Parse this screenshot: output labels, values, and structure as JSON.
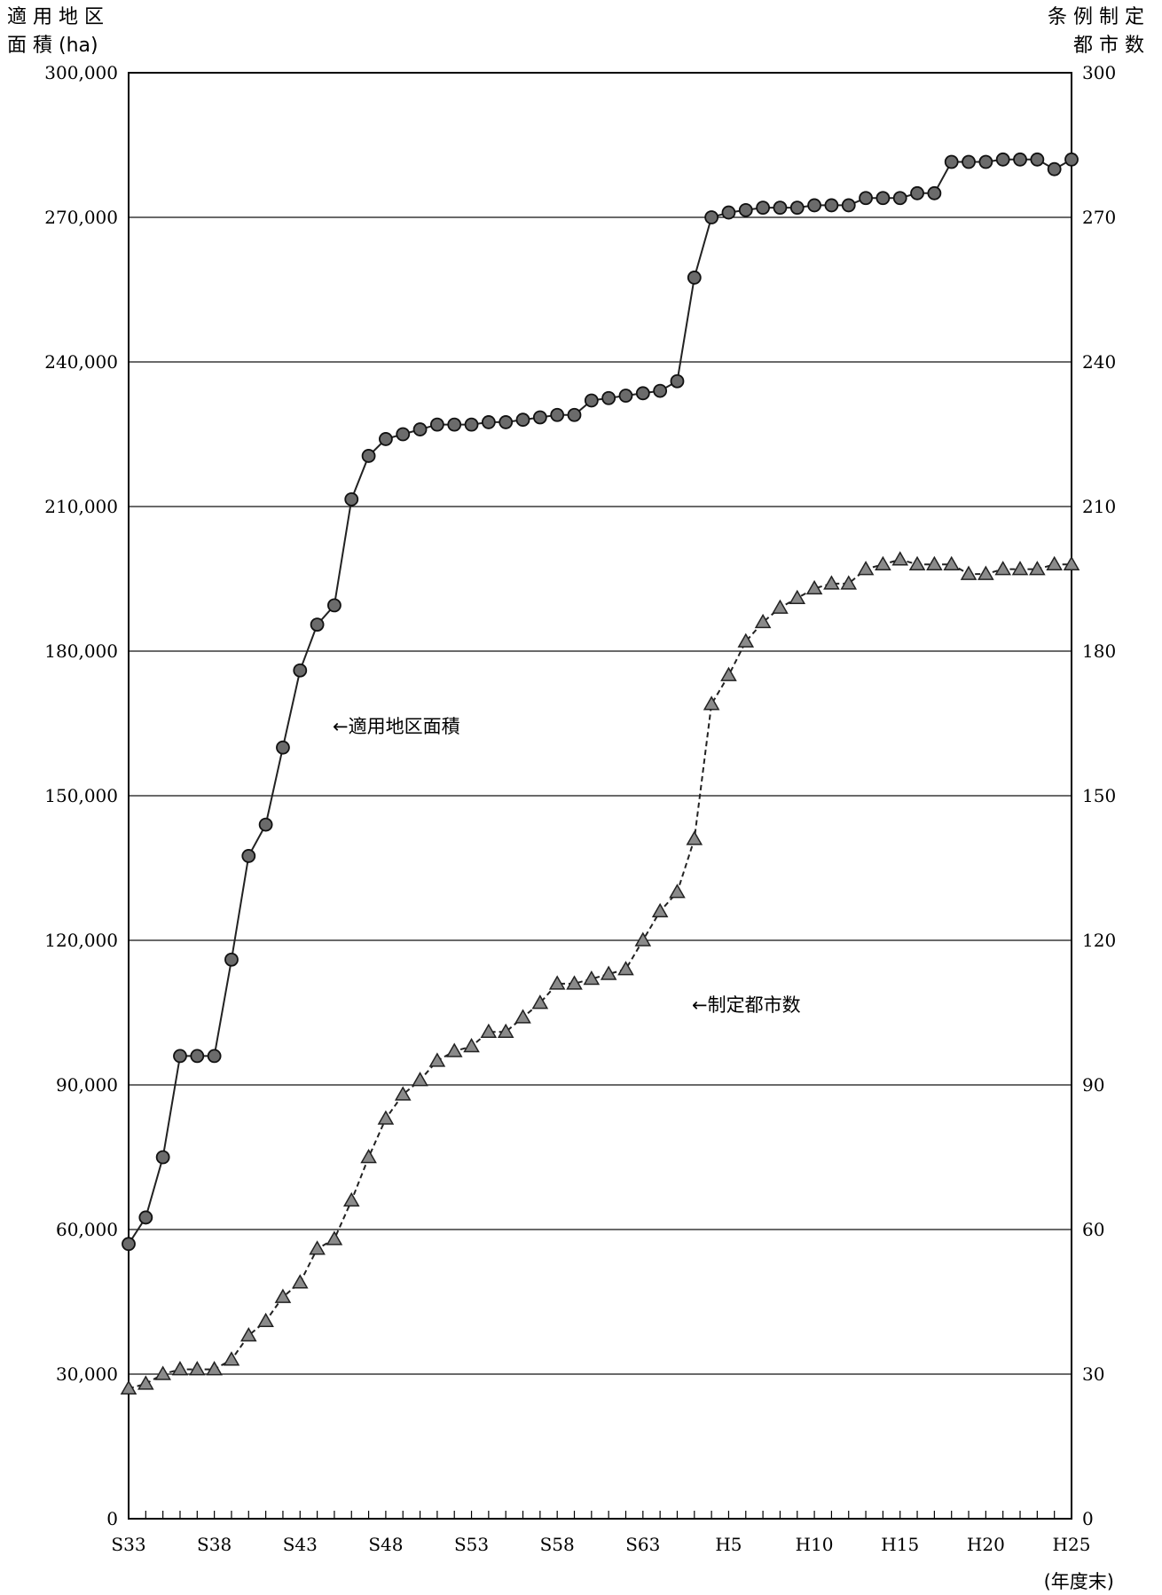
{
  "chart_data": {
    "type": "line",
    "left_axis_label_line1": "適 用 地 区",
    "left_axis_label_line2": "面 積 (ha)",
    "right_axis_label_line1": "条 例 制 定",
    "right_axis_label_line2": "都 市 数",
    "xlabel": "(年度末)",
    "left_ylim": [
      0,
      300000
    ],
    "right_ylim": [
      0,
      300
    ],
    "left_ticks": [
      "0",
      "30,000",
      "60,000",
      "90,000",
      "120,000",
      "150,000",
      "180,000",
      "210,000",
      "240,000",
      "270,000",
      "300,000"
    ],
    "right_ticks": [
      "0",
      "30",
      "60",
      "90",
      "120",
      "150",
      "180",
      "210",
      "240",
      "270",
      "300"
    ],
    "grid": "horizontal",
    "x_categories": [
      "S33",
      "S34",
      "S35",
      "S36",
      "S37",
      "S38",
      "S39",
      "S40",
      "S41",
      "S42",
      "S43",
      "S44",
      "S45",
      "S46",
      "S47",
      "S48",
      "S49",
      "S50",
      "S51",
      "S52",
      "S53",
      "S54",
      "S55",
      "S56",
      "S57",
      "S58",
      "S59",
      "S60",
      "S61",
      "S62",
      "S63",
      "H1",
      "H2",
      "H3",
      "H4",
      "H5",
      "H6",
      "H7",
      "H8",
      "H9",
      "H10",
      "H11",
      "H12",
      "H13",
      "H14",
      "H15",
      "H16",
      "H17",
      "H18",
      "H19",
      "H20",
      "H21",
      "H22",
      "H23",
      "H24",
      "H25"
    ],
    "x_tick_labels": [
      {
        "index": 0,
        "label": "S33"
      },
      {
        "index": 5,
        "label": "S38"
      },
      {
        "index": 10,
        "label": "S43"
      },
      {
        "index": 15,
        "label": "S48"
      },
      {
        "index": 20,
        "label": "S53"
      },
      {
        "index": 25,
        "label": "S58"
      },
      {
        "index": 30,
        "label": "S63"
      },
      {
        "index": 35,
        "label": "H5"
      },
      {
        "index": 40,
        "label": "H10"
      },
      {
        "index": 45,
        "label": "H15"
      },
      {
        "index": 50,
        "label": "H20"
      },
      {
        "index": 55,
        "label": "H25"
      }
    ],
    "series": [
      {
        "name": "←適用地区面積",
        "axis": "left",
        "marker": "circle",
        "line_style": "solid",
        "color": "#222222",
        "values": [
          57000,
          62500,
          75000,
          96000,
          96000,
          96000,
          116000,
          137500,
          144000,
          160000,
          176000,
          185500,
          189500,
          211500,
          220500,
          224000,
          225000,
          226000,
          227000,
          227000,
          227000,
          227500,
          227500,
          228000,
          228500,
          229000,
          229000,
          232000,
          232500,
          233000,
          233500,
          234000,
          236000,
          257500,
          270000,
          271000,
          271500,
          272000,
          272000,
          272000,
          272500,
          272500,
          272500,
          274000,
          274000,
          274000,
          275000,
          275000,
          281500,
          281500,
          281500,
          282000,
          282000,
          282000,
          280000,
          282000
        ]
      },
      {
        "name": "←制定都市数",
        "axis": "right",
        "marker": "triangle",
        "line_style": "dashed",
        "color": "#222222",
        "values": [
          27,
          28,
          30,
          31,
          31,
          31,
          33,
          38,
          41,
          46,
          49,
          56,
          58,
          66,
          75,
          83,
          88,
          91,
          95,
          97,
          98,
          101,
          101,
          104,
          107,
          111,
          111,
          112,
          113,
          114,
          120,
          126,
          130,
          141,
          169,
          175,
          182,
          186,
          189,
          191,
          193,
          194,
          194,
          197,
          198,
          199,
          198,
          198,
          198,
          196,
          196,
          197,
          197,
          197,
          198,
          198
        ]
      }
    ],
    "annotations": [
      {
        "text": "←適用地区面積",
        "series": 0
      },
      {
        "text": "←制定都市数",
        "series": 1
      }
    ]
  }
}
